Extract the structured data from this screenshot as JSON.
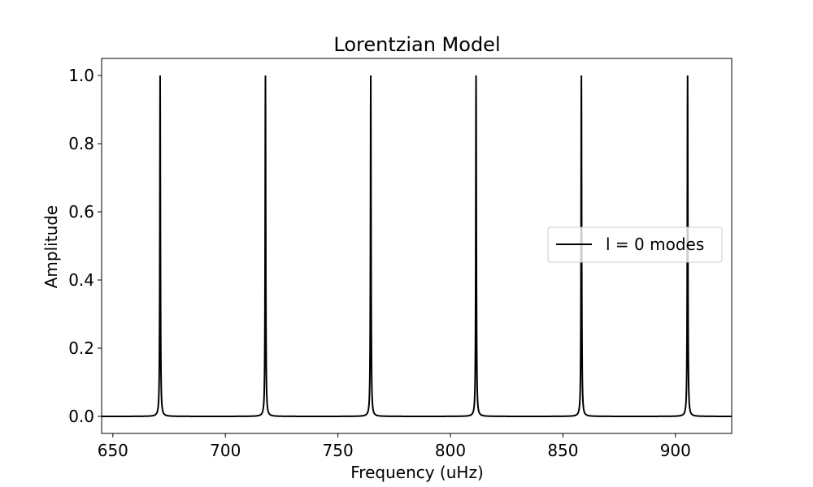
{
  "chart_data": {
    "type": "line",
    "title": "Lorentzian Model",
    "xlabel": "Frequency (uHz)",
    "ylabel": "Amplitude",
    "xlim": [
      645,
      925
    ],
    "ylim": [
      -0.05,
      1.05
    ],
    "xticks": [
      650,
      700,
      750,
      800,
      850,
      900
    ],
    "yticks": [
      0.0,
      0.2,
      0.4,
      0.6,
      0.8,
      1.0
    ],
    "xtick_labels": [
      "650",
      "700",
      "750",
      "800",
      "850",
      "900"
    ],
    "ytick_labels": [
      "0.0",
      "0.2",
      "0.4",
      "0.6",
      "0.8",
      "1.0"
    ],
    "grid": false,
    "legend_position": "center-right",
    "line_color": "#000000",
    "series": [
      {
        "name": "l = 0 modes",
        "model": "lorentzian",
        "peak_frequencies": [
          671.0,
          717.8,
          764.6,
          811.4,
          858.2,
          905.4
        ],
        "peak_amplitudes": [
          1.0,
          1.0,
          1.0,
          1.0,
          1.0,
          1.0
        ],
        "linewidth": 0.3
      }
    ]
  }
}
